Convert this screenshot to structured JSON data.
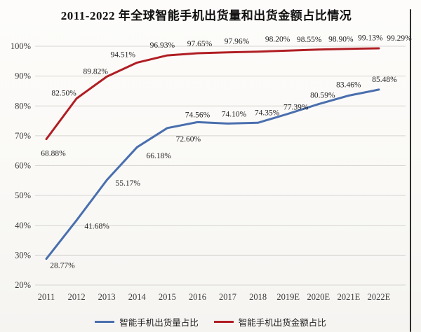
{
  "chart_data": {
    "type": "line",
    "title": "2011-2022 年全球智能手机出货量和出货金额占比情况",
    "categories": [
      "2011",
      "2012",
      "2013",
      "2014",
      "2015",
      "2016",
      "2017",
      "2018",
      "2019E",
      "2020E",
      "2021E",
      "2022E"
    ],
    "ylim": [
      20,
      100
    ],
    "yticks": [
      {
        "value": 20,
        "label": "20%"
      },
      {
        "value": 30,
        "label": "30%"
      },
      {
        "value": 40,
        "label": "40%"
      },
      {
        "value": 50,
        "label": "50%"
      },
      {
        "value": 60,
        "label": "60%"
      },
      {
        "value": 70,
        "label": "70%"
      },
      {
        "value": 80,
        "label": "80%"
      },
      {
        "value": 90,
        "label": "90%"
      },
      {
        "value": 100,
        "label": "100%"
      }
    ],
    "grid": true,
    "legend_position": "bottom",
    "series": [
      {
        "name": "智能手机出货量占比",
        "color": "#4a6fae",
        "values": [
          28.77,
          41.68,
          55.17,
          66.18,
          72.6,
          74.56,
          74.1,
          74.35,
          77.39,
          80.59,
          83.46,
          85.48
        ],
        "label_offsets": [
          [
            23,
            13
          ],
          [
            29,
            12
          ],
          [
            30,
            8
          ],
          [
            31,
            16
          ],
          [
            30,
            19
          ],
          [
            0,
            -7
          ],
          [
            9,
            -10
          ],
          [
            13,
            -11
          ],
          [
            11,
            -6
          ],
          [
            6,
            -9
          ],
          [
            0,
            -12
          ],
          [
            8,
            -11
          ]
        ]
      },
      {
        "name": "智能手机出货金额占比",
        "color": "#b01e24",
        "values": [
          68.88,
          82.5,
          89.82,
          94.51,
          96.93,
          97.65,
          97.96,
          98.2,
          98.55,
          98.9,
          99.13,
          99.29
        ],
        "label_offsets": [
          [
            10,
            24
          ],
          [
            -18,
            -4
          ],
          [
            -16,
            -4
          ],
          [
            -20,
            -8
          ],
          [
            -7,
            -11
          ],
          [
            3,
            -10
          ],
          [
            13,
            -12
          ],
          [
            28,
            -14
          ],
          [
            30,
            -12
          ],
          [
            32,
            -11
          ],
          [
            31,
            -12
          ],
          [
            29,
            -11
          ]
        ]
      }
    ]
  },
  "colors": {
    "gridline": "#d8d6d2",
    "axis_text": "#3c3c3c",
    "data_label_text": "#1f1f1f",
    "title_text": "#111111",
    "edge_artifact": "#2f2f2f"
  }
}
